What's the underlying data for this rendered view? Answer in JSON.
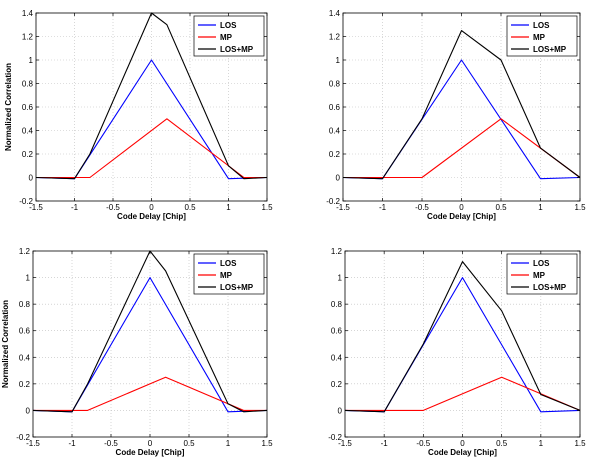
{
  "chart_data": [
    {
      "type": "line",
      "xlabel": "Code Delay [Chip]",
      "ylabel": "Normalized Correlation",
      "xlim": [
        -1.5,
        1.5
      ],
      "ylim": [
        -0.2,
        1.4
      ],
      "xticks": [
        "-1.5",
        "-1",
        "-0.5",
        "0",
        "0.5",
        "1",
        "1.5"
      ],
      "yticks": [
        "-0.2",
        "0",
        "0.2",
        "0.4",
        "0.6",
        "0.8",
        "1",
        "1.2",
        "1.4"
      ],
      "grid": true,
      "legend_position": "top-right",
      "series": [
        {
          "name": "LOS",
          "color": "#0000ff",
          "x": [
            -1.5,
            -1,
            0,
            1,
            1.5
          ],
          "y": [
            0,
            -0.01,
            1,
            -0.01,
            0
          ]
        },
        {
          "name": "MP",
          "color": "#ff0000",
          "x": [
            -1.5,
            -0.8,
            0.2,
            1.2,
            1.5
          ],
          "y": [
            0,
            0,
            0.5,
            0,
            0
          ]
        },
        {
          "name": "LOS+MP",
          "color": "#000000",
          "x": [
            -1.5,
            -1,
            -0.8,
            0,
            0.2,
            1,
            1.2,
            1.5
          ],
          "y": [
            0,
            -0.01,
            0.2,
            1.4,
            1.3,
            0.1,
            -0.01,
            0
          ]
        }
      ]
    },
    {
      "type": "line",
      "xlabel": "Code Delay [Chip]",
      "ylabel": "",
      "xlim": [
        -1.5,
        1.5
      ],
      "ylim": [
        -0.2,
        1.4
      ],
      "xticks": [
        "-1.5",
        "-1",
        "-0.5",
        "0",
        "0.5",
        "1",
        "1.5"
      ],
      "yticks": [
        "-0.2",
        "0",
        "0.2",
        "0.4",
        "0.6",
        "0.8",
        "1",
        "1.2",
        "1.4"
      ],
      "grid": true,
      "legend_position": "top-right",
      "series": [
        {
          "name": "LOS",
          "color": "#0000ff",
          "x": [
            -1.5,
            -1,
            0,
            1,
            1.5
          ],
          "y": [
            0,
            -0.01,
            1,
            -0.01,
            0
          ]
        },
        {
          "name": "MP",
          "color": "#ff0000",
          "x": [
            -1.5,
            -0.5,
            0.5,
            1.5
          ],
          "y": [
            0,
            0,
            0.5,
            0
          ]
        },
        {
          "name": "LOS+MP",
          "color": "#000000",
          "x": [
            -1.5,
            -1,
            -0.5,
            0,
            0.5,
            1,
            1.5
          ],
          "y": [
            0,
            -0.01,
            0.5,
            1.25,
            1.0,
            0.25,
            0
          ]
        }
      ]
    },
    {
      "type": "line",
      "xlabel": "Code Delay [Chip]",
      "ylabel": "Normalized Correlation",
      "xlim": [
        -1.5,
        1.5
      ],
      "ylim": [
        -0.2,
        1.2
      ],
      "xticks": [
        "-1.5",
        "-1",
        "-0.5",
        "0",
        "0.5",
        "1",
        "1.5"
      ],
      "yticks": [
        "-0.2",
        "0",
        "0.2",
        "0.4",
        "0.6",
        "0.8",
        "1",
        "1.2"
      ],
      "grid": true,
      "legend_position": "top-right",
      "series": [
        {
          "name": "LOS",
          "color": "#0000ff",
          "x": [
            -1.5,
            -1,
            0,
            1,
            1.5
          ],
          "y": [
            0,
            -0.01,
            1,
            -0.01,
            0
          ]
        },
        {
          "name": "MP",
          "color": "#ff0000",
          "x": [
            -1.5,
            -0.8,
            0.2,
            1.2,
            1.5
          ],
          "y": [
            0,
            0,
            0.25,
            0,
            0
          ]
        },
        {
          "name": "LOS+MP",
          "color": "#000000",
          "x": [
            -1.5,
            -1,
            -0.8,
            0,
            0.2,
            1,
            1.2,
            1.5
          ],
          "y": [
            0,
            -0.01,
            0.2,
            1.2,
            1.05,
            0.05,
            -0.01,
            0
          ]
        }
      ]
    },
    {
      "type": "line",
      "xlabel": "Code Delay [Chip]",
      "ylabel": "",
      "xlim": [
        -1.5,
        1.5
      ],
      "ylim": [
        -0.2,
        1.2
      ],
      "xticks": [
        "-1.5",
        "-1",
        "-0.5",
        "0",
        "0.5",
        "1",
        "1.5"
      ],
      "yticks": [
        "-0.2",
        "0",
        "0.2",
        "0.4",
        "0.6",
        "0.8",
        "1",
        "1.2"
      ],
      "grid": true,
      "legend_position": "top-right",
      "series": [
        {
          "name": "LOS",
          "color": "#0000ff",
          "x": [
            -1.5,
            -1,
            0,
            1,
            1.5
          ],
          "y": [
            0,
            -0.01,
            1,
            -0.01,
            0
          ]
        },
        {
          "name": "MP",
          "color": "#ff0000",
          "x": [
            -1.5,
            -0.5,
            0.5,
            1.5
          ],
          "y": [
            0,
            0,
            0.25,
            0
          ]
        },
        {
          "name": "LOS+MP",
          "color": "#000000",
          "x": [
            -1.5,
            -1,
            -0.5,
            0,
            0.5,
            1,
            1.5
          ],
          "y": [
            0,
            -0.01,
            0.5,
            1.12,
            0.75,
            0.12,
            0
          ]
        }
      ]
    }
  ]
}
